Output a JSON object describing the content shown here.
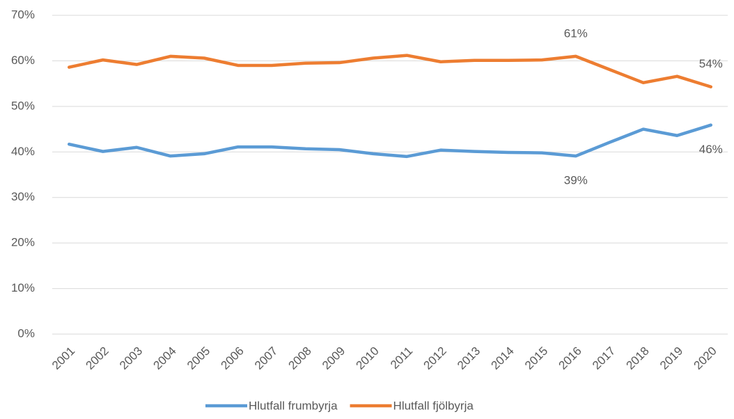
{
  "chart_data": {
    "type": "line",
    "categories": [
      "2001",
      "2002",
      "2003",
      "2004",
      "2005",
      "2006",
      "2007",
      "2008",
      "2009",
      "2010",
      "2011",
      "2012",
      "2013",
      "2014",
      "2015",
      "2016",
      "2017",
      "2018",
      "2019",
      "2020"
    ],
    "series": [
      {
        "name": "Hlutfall frumbyrja",
        "color": "#5b9bd5",
        "values": [
          41.7,
          40.1,
          41.0,
          39.1,
          39.6,
          41.1,
          41.1,
          40.7,
          40.5,
          39.6,
          39.0,
          40.4,
          40.1,
          39.9,
          39.8,
          39.1,
          42.1,
          45.0,
          43.6,
          45.9
        ],
        "value_labels": [
          null,
          null,
          null,
          null,
          null,
          null,
          null,
          null,
          null,
          null,
          null,
          null,
          null,
          null,
          null,
          "39%",
          null,
          null,
          null,
          "46%"
        ]
      },
      {
        "name": "Hlutfall fjölbyrja",
        "color": "#ed7d31",
        "values": [
          58.6,
          60.2,
          59.2,
          61.0,
          60.6,
          59.0,
          59.0,
          59.5,
          59.6,
          60.6,
          61.2,
          59.8,
          60.1,
          60.1,
          60.2,
          61.0,
          58.1,
          55.2,
          56.6,
          54.3
        ],
        "value_labels": [
          null,
          null,
          null,
          null,
          null,
          null,
          null,
          null,
          null,
          null,
          null,
          null,
          null,
          null,
          null,
          "61%",
          null,
          null,
          null,
          "54%"
        ]
      }
    ],
    "ylim": [
      0,
      70
    ],
    "yticks": [
      {
        "value": 0,
        "label": "0%"
      },
      {
        "value": 10,
        "label": "10%"
      },
      {
        "value": 20,
        "label": "20%"
      },
      {
        "value": 30,
        "label": "30%"
      },
      {
        "value": 40,
        "label": "40%"
      },
      {
        "value": 50,
        "label": "50%"
      },
      {
        "value": 60,
        "label": "60%"
      },
      {
        "value": 70,
        "label": "70%"
      }
    ],
    "grid": true,
    "legend": "bottom"
  }
}
